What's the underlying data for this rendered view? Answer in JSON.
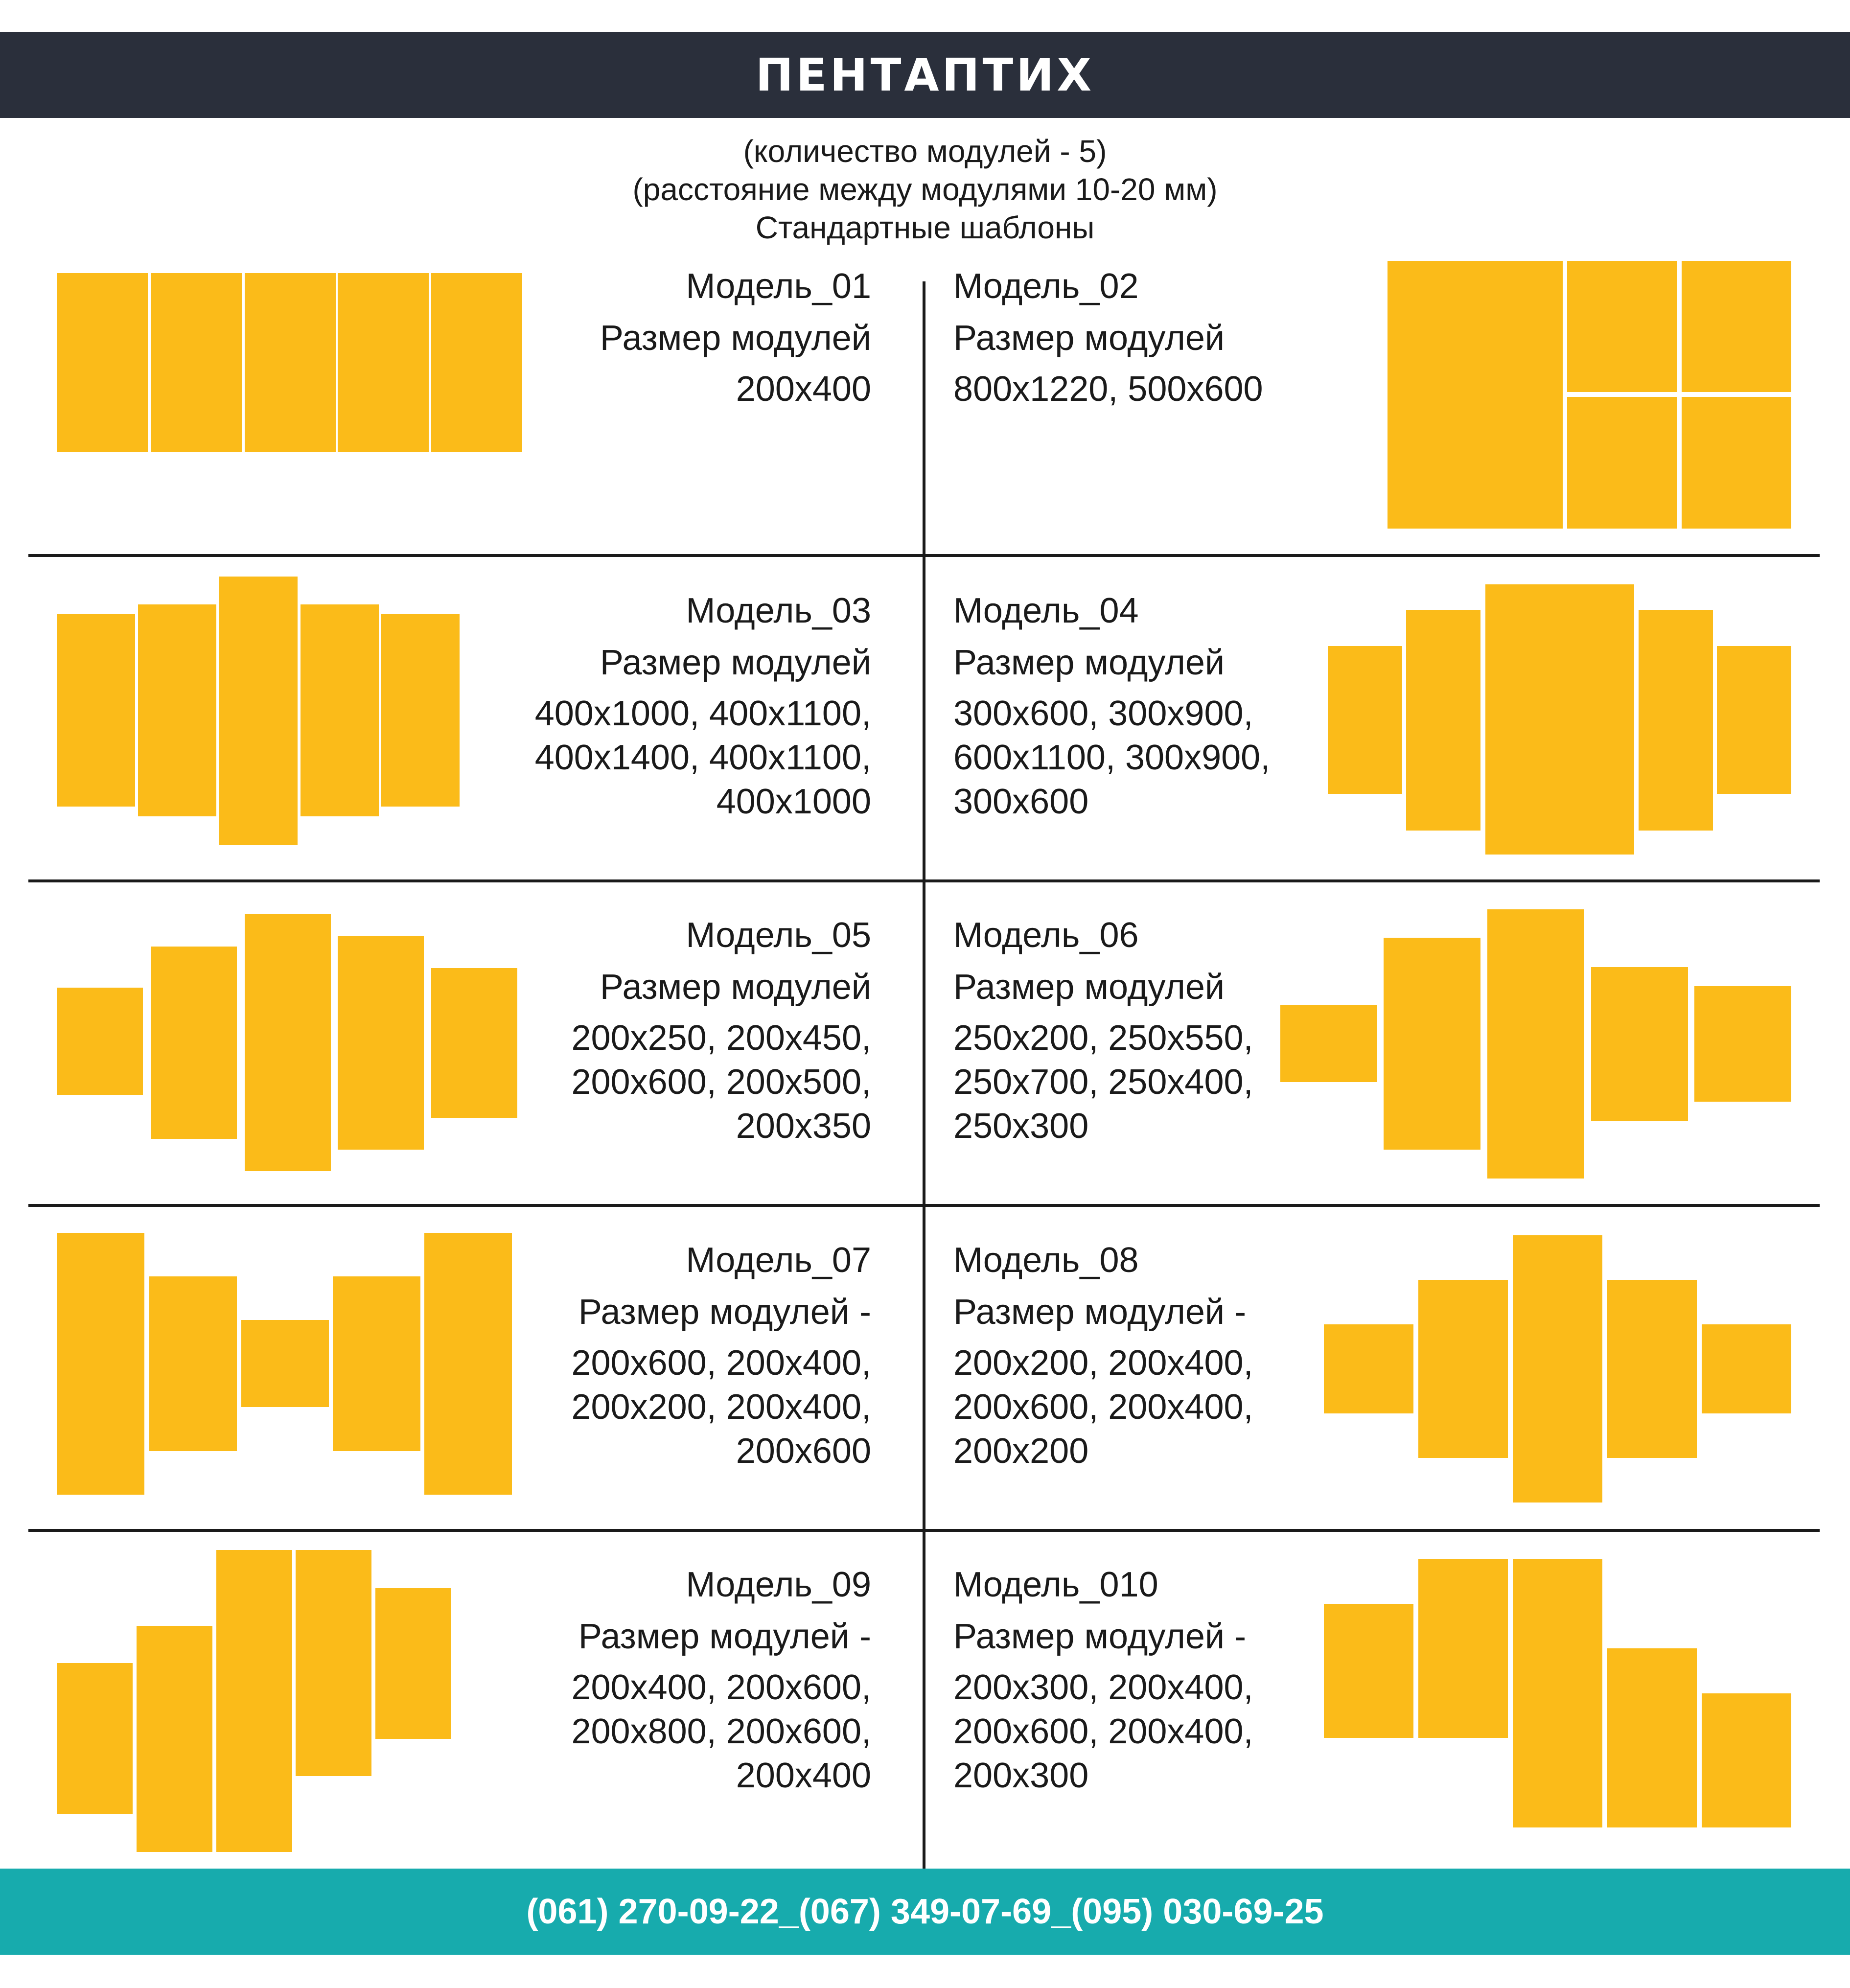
{
  "header": {
    "title": "ПЕНТАПТИХ"
  },
  "intro": {
    "line1": "(количество модулей - 5)",
    "line2": "(расстояние между модулями 10-20 мм)",
    "line3": "Стандартные шаблоны"
  },
  "models": [
    {
      "title": "Модель_01",
      "sizes_label": "Размер модулей",
      "sizes": "200x400"
    },
    {
      "title": "Модель_02",
      "sizes_label": "Размер модулей",
      "sizes": "800x1220, 500x600"
    },
    {
      "title": "Модель_03",
      "sizes_label": "Размер модулей",
      "sizes": "400x1000, 400x1100,\n400x1400, 400x1100,\n400x1000"
    },
    {
      "title": "Модель_04",
      "sizes_label": "Размер модулей",
      "sizes": "300x600, 300x900,\n600x1100, 300x900,\n300x600"
    },
    {
      "title": "Модель_05",
      "sizes_label": "Размер модулей",
      "sizes": "200x250, 200x450,\n200x600, 200x500,\n200x350"
    },
    {
      "title": "Модель_06",
      "sizes_label": "Размер модулей",
      "sizes": "250x200, 250x550,\n250x700, 250x400,\n250x300"
    },
    {
      "title": "Модель_07",
      "sizes_label": "Размер модулей -",
      "sizes": "200x600, 200x400,\n200x200, 200x400,\n200x600"
    },
    {
      "title": "Модель_08",
      "sizes_label": "Размер модулей -",
      "sizes": "200x200, 200x400,\n200x600, 200x400,\n200x200"
    },
    {
      "title": "Модель_09",
      "sizes_label": "Размер модулей -",
      "sizes": "200x400, 200x600,\n200x800, 200x600,\n200x400"
    },
    {
      "title": "Модель_010",
      "sizes_label": "Размер модулей -",
      "sizes": "200x300, 200x400,\n200x600, 200x400,\n200x300"
    }
  ],
  "colors": {
    "panel": "#fbbb19",
    "header_bg": "#2a2f3b",
    "footer_bg": "#17abad"
  },
  "footer": {
    "phones": "(061) 270-09-22_(067) 349-07-69_(095) 030-69-25"
  }
}
